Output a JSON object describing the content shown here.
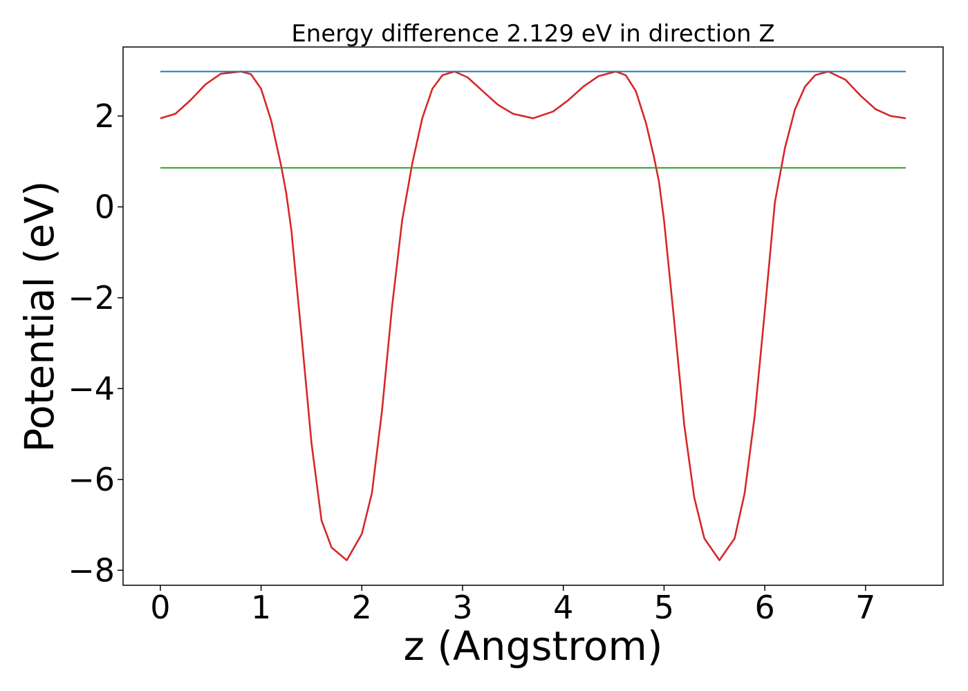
{
  "chart_data": {
    "type": "line",
    "title": "Energy difference 2.129 eV in direction Z",
    "xlabel": "z (Angstrom)",
    "ylabel": "Potential (eV)",
    "xlim": [
      -0.37,
      7.77
    ],
    "ylim": [
      -8.33,
      3.52
    ],
    "x_ticks": [
      0,
      1,
      2,
      3,
      4,
      5,
      6,
      7
    ],
    "x_tick_labels": [
      "0",
      "1",
      "2",
      "3",
      "4",
      "5",
      "6",
      "7"
    ],
    "y_ticks": [
      -8,
      -6,
      -4,
      -2,
      0,
      2
    ],
    "y_tick_labels": [
      "−8",
      "−6",
      "−4",
      "−2",
      "0",
      "2"
    ],
    "grid": false,
    "series": [
      {
        "color": "#d62728",
        "x": [
          0,
          0.15,
          0.3,
          0.45,
          0.6,
          0.8,
          0.9,
          1.0,
          1.1,
          1.2,
          1.25,
          1.3,
          1.4,
          1.5,
          1.6,
          1.7,
          1.85,
          2.0,
          2.1,
          2.2,
          2.3,
          2.4,
          2.5,
          2.6,
          2.7,
          2.8,
          2.92,
          3.05,
          3.2,
          3.35,
          3.5,
          3.7,
          3.9,
          4.05,
          4.2,
          4.35,
          4.52,
          4.62,
          4.72,
          4.82,
          4.9,
          4.95,
          5.0,
          5.1,
          5.2,
          5.3,
          5.4,
          5.55,
          5.7,
          5.8,
          5.9,
          6.0,
          6.1,
          6.2,
          6.3,
          6.4,
          6.5,
          6.63,
          6.8,
          6.95,
          7.1,
          7.25,
          7.4
        ],
        "y": [
          1.95,
          2.05,
          2.35,
          2.7,
          2.93,
          2.98,
          2.92,
          2.6,
          1.9,
          0.9,
          0.3,
          -0.5,
          -2.8,
          -5.2,
          -6.9,
          -7.5,
          -7.78,
          -7.2,
          -6.3,
          -4.5,
          -2.2,
          -0.3,
          0.95,
          1.95,
          2.6,
          2.9,
          2.98,
          2.85,
          2.55,
          2.25,
          2.05,
          1.95,
          2.1,
          2.35,
          2.65,
          2.88,
          2.98,
          2.9,
          2.55,
          1.85,
          1.1,
          0.55,
          -0.3,
          -2.5,
          -4.8,
          -6.4,
          -7.3,
          -7.78,
          -7.3,
          -6.3,
          -4.6,
          -2.3,
          0.1,
          1.3,
          2.15,
          2.65,
          2.9,
          2.98,
          2.8,
          2.45,
          2.15,
          2.0,
          1.95
        ]
      },
      {
        "color": "#1f77b4",
        "x": [
          0,
          7.4
        ],
        "y": [
          2.98,
          2.98
        ]
      },
      {
        "color": "#2ca02c",
        "x": [
          0,
          7.4
        ],
        "y": [
          0.86,
          0.86
        ]
      }
    ]
  }
}
